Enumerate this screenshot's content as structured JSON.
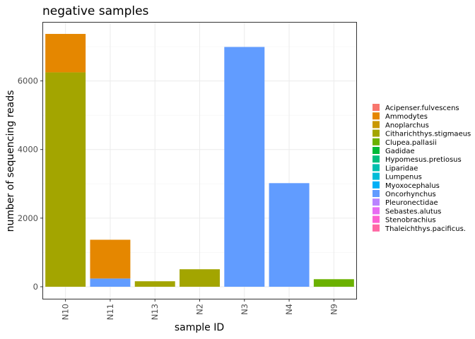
{
  "chart_data": {
    "type": "bar",
    "stacked": true,
    "title": "negative samples",
    "xlabel": "sample ID",
    "ylabel": "number of sequencing reads",
    "categories": [
      "N10",
      "N11",
      "N13",
      "N2",
      "N3",
      "N4",
      "N9"
    ],
    "ylim": [
      -350,
      7700
    ],
    "yticks": [
      0,
      2000,
      4000,
      6000
    ],
    "grid": true,
    "legend_position": "right",
    "legend": [
      {
        "name": "Acipenser.fulvescens",
        "color": "#F8766D"
      },
      {
        "name": "Ammodytes",
        "color": "#E58700"
      },
      {
        "name": "Anoplarchus",
        "color": "#C99800"
      },
      {
        "name": "Citharichthys.stigmaeus",
        "color": "#A3A500"
      },
      {
        "name": "Clupea.pallasii",
        "color": "#6BB100"
      },
      {
        "name": "Gadidae",
        "color": "#00BA38"
      },
      {
        "name": "Hypomesus.pretiosus",
        "color": "#00BF7D"
      },
      {
        "name": "Liparidae",
        "color": "#00C0AF"
      },
      {
        "name": "Lumpenus",
        "color": "#00BCD8"
      },
      {
        "name": "Myoxocephalus",
        "color": "#00B0F6"
      },
      {
        "name": "Oncorhynchus",
        "color": "#619CFF"
      },
      {
        "name": "Pleuronectidae",
        "color": "#B983FF"
      },
      {
        "name": "Sebastes.alutus",
        "color": "#E76BF3"
      },
      {
        "name": "Stenobrachius",
        "color": "#FD61D1"
      },
      {
        "name": "Thaleichthys.pacificus.",
        "color": "#FF67A4"
      }
    ],
    "stacks": [
      {
        "category": "N10",
        "segments": [
          {
            "series": "Citharichthys.stigmaeus",
            "value": 6250
          },
          {
            "series": "Ammodytes",
            "value": 1120
          }
        ]
      },
      {
        "category": "N11",
        "segments": [
          {
            "series": "Oncorhynchus",
            "value": 240
          },
          {
            "series": "Ammodytes",
            "value": 1130
          }
        ]
      },
      {
        "category": "N13",
        "segments": [
          {
            "series": "Citharichthys.stigmaeus",
            "value": 160
          }
        ]
      },
      {
        "category": "N2",
        "segments": [
          {
            "series": "Citharichthys.stigmaeus",
            "value": 510
          }
        ]
      },
      {
        "category": "N3",
        "segments": [
          {
            "series": "Oncorhynchus",
            "value": 6990
          }
        ]
      },
      {
        "category": "N4",
        "segments": [
          {
            "series": "Oncorhynchus",
            "value": 3020
          }
        ]
      },
      {
        "category": "N9",
        "segments": [
          {
            "series": "Clupea.pallasii",
            "value": 220
          }
        ]
      }
    ]
  }
}
